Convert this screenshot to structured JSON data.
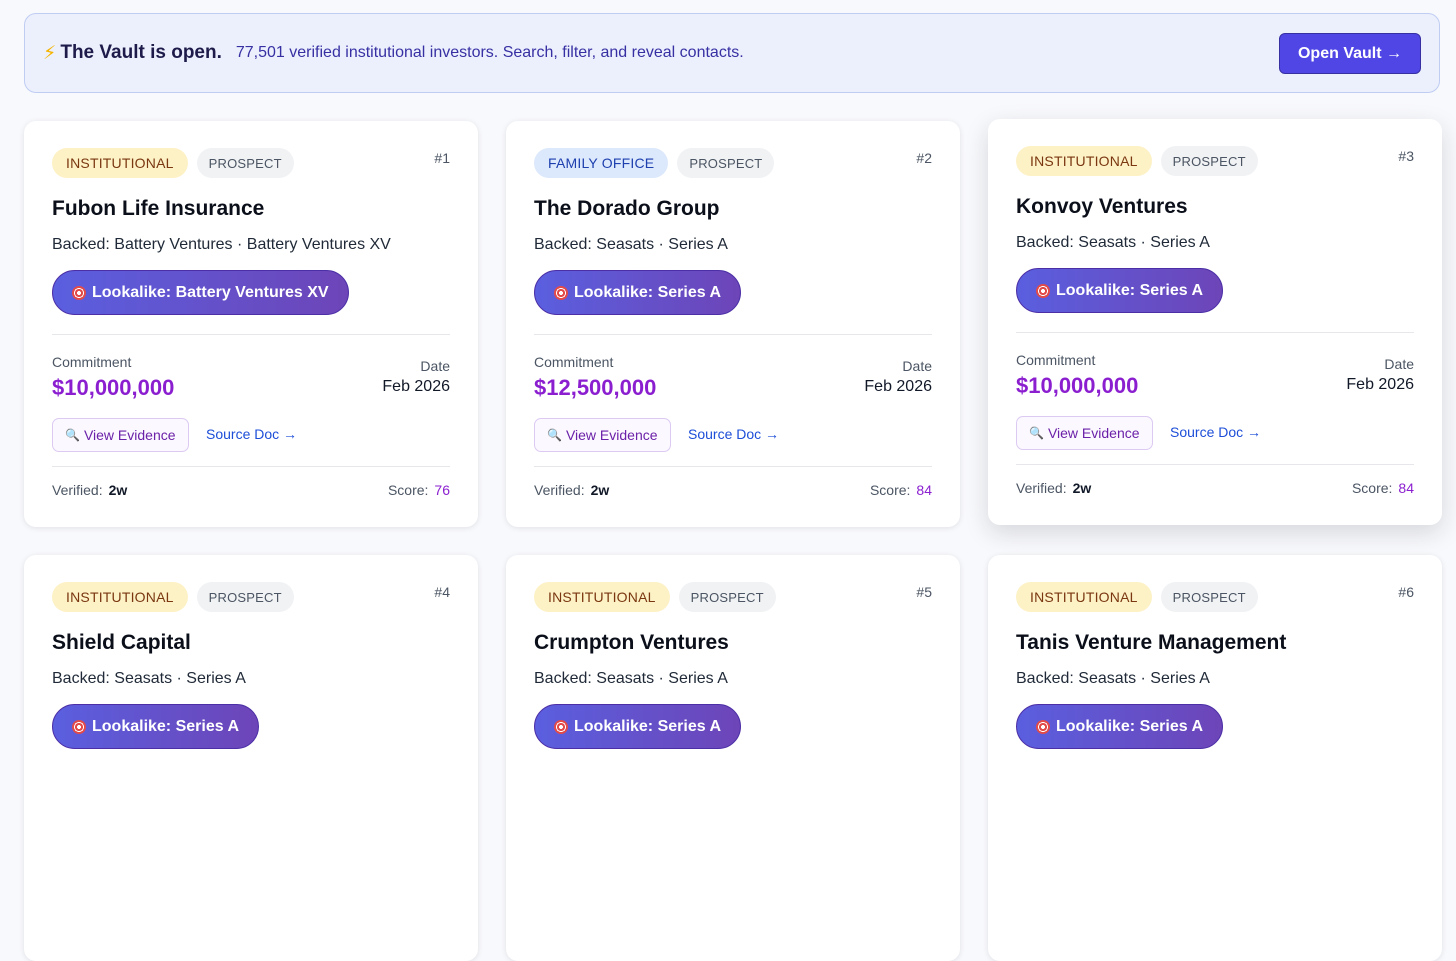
{
  "banner": {
    "icon": "lightning-bolt-icon",
    "title": "The Vault is open.",
    "subtitle": "77,501 verified institutional investors. Search, filter, and reveal contacts.",
    "button_label": "Open Vault →"
  },
  "labels": {
    "backed": "Backed:",
    "commitment": "Commitment",
    "date": "Date",
    "view_evidence": "View Evidence",
    "source_doc": "Source Doc →",
    "verified": "Verified:",
    "score": "Score:"
  },
  "cards": [
    {
      "type_tag": "INSTITUTIONAL",
      "status_tag": "PROSPECT",
      "rank": "#1",
      "name": "Fubon Life Insurance",
      "backed": "Battery Ventures · Battery Ventures XV",
      "lookalike": "Lookalike: Battery Ventures XV",
      "commitment": "$10,000,000",
      "date": "Feb 2026",
      "verified": "2w",
      "score": "76"
    },
    {
      "type_tag": "FAMILY OFFICE",
      "status_tag": "PROSPECT",
      "rank": "#2",
      "name": "The Dorado Group",
      "backed": "Seasats · Series A",
      "lookalike": "Lookalike: Series A",
      "commitment": "$12,500,000",
      "date": "Feb 2026",
      "verified": "2w",
      "score": "84"
    },
    {
      "type_tag": "INSTITUTIONAL",
      "status_tag": "PROSPECT",
      "rank": "#3",
      "name": "Konvoy Ventures",
      "backed": "Seasats · Series A",
      "lookalike": "Lookalike: Series A",
      "commitment": "$10,000,000",
      "date": "Feb 2026",
      "verified": "2w",
      "score": "84"
    },
    {
      "type_tag": "INSTITUTIONAL",
      "status_tag": "PROSPECT",
      "rank": "#4",
      "name": "Shield Capital",
      "backed": "Seasats · Series A",
      "lookalike": "Lookalike: Series A"
    },
    {
      "type_tag": "INSTITUTIONAL",
      "status_tag": "PROSPECT",
      "rank": "#5",
      "name": "Crumpton Ventures",
      "backed": "Seasats · Series A",
      "lookalike": "Lookalike: Series A"
    },
    {
      "type_tag": "INSTITUTIONAL",
      "status_tag": "PROSPECT",
      "rank": "#6",
      "name": "Tanis Venture Management",
      "backed": "Seasats · Series A",
      "lookalike": "Lookalike: Series A"
    }
  ],
  "colors": {
    "accent": "#4f46e5",
    "commitment": "#8b1fd0",
    "institutional_tag_bg": "#fdf1c6",
    "family_office_tag_bg": "#dce8fc"
  }
}
